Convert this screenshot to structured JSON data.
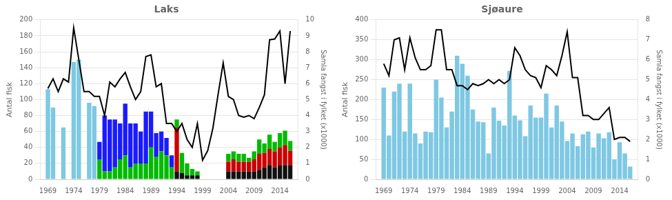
{
  "chart_data": [
    {
      "type": "bar",
      "title": "Laks",
      "ylabel": "Antal fisk",
      "y2label": "Samla fangst i fylket (x1000)",
      "stacked": true,
      "grid": true,
      "x": [
        1969,
        1970,
        1971,
        1972,
        1973,
        1974,
        1975,
        1976,
        1977,
        1978,
        1979,
        1980,
        1981,
        1982,
        1983,
        1984,
        1985,
        1986,
        1987,
        1988,
        1989,
        1990,
        1991,
        1992,
        1993,
        1994,
        1995,
        1996,
        1997,
        1998,
        1999,
        2000,
        2001,
        2002,
        2003,
        2004,
        2005,
        2006,
        2007,
        2008,
        2009,
        2010,
        2011,
        2012,
        2013,
        2014,
        2015,
        2016
      ],
      "xlim": [
        1967.5,
        2017.5
      ],
      "xticks": [
        1969,
        1974,
        1979,
        1984,
        1989,
        1994,
        1999,
        2004,
        2009,
        2014
      ],
      "ylim": [
        0,
        200
      ],
      "yticks": [
        0,
        20,
        40,
        60,
        80,
        100,
        120,
        140,
        160,
        180,
        200
      ],
      "y2lim": [
        0,
        10
      ],
      "y2ticks": [
        0,
        1,
        2,
        3,
        4,
        5,
        6,
        7,
        8,
        9,
        10
      ],
      "series": [
        {
          "color": "#7ec8e3",
          "values": [
            113,
            90,
            0,
            65,
            0,
            147,
            150,
            0,
            96,
            92,
            0,
            0,
            0,
            0,
            0,
            0,
            0,
            0,
            0,
            0,
            0,
            0,
            0,
            0,
            0,
            0,
            0,
            0,
            0,
            0,
            0,
            0,
            0,
            0,
            0,
            0,
            0,
            0,
            0,
            0,
            0,
            0,
            0,
            0,
            0,
            0,
            0,
            0
          ]
        },
        {
          "color": "#111111",
          "values": [
            0,
            0,
            0,
            0,
            0,
            0,
            0,
            0,
            0,
            0,
            0,
            0,
            0,
            0,
            0,
            0,
            0,
            0,
            0,
            0,
            0,
            0,
            0,
            0,
            0,
            10,
            8,
            5,
            5,
            5,
            0,
            0,
            0,
            0,
            0,
            10,
            10,
            10,
            10,
            10,
            10,
            12,
            15,
            18,
            15,
            18,
            18,
            18
          ]
        },
        {
          "color": "#cc0000",
          "values": [
            0,
            0,
            0,
            0,
            0,
            0,
            0,
            0,
            0,
            0,
            0,
            0,
            0,
            0,
            0,
            0,
            0,
            0,
            0,
            0,
            0,
            0,
            0,
            0,
            0,
            55,
            0,
            0,
            0,
            0,
            0,
            0,
            0,
            0,
            0,
            12,
            15,
            12,
            12,
            12,
            15,
            20,
            18,
            20,
            20,
            22,
            25,
            18
          ]
        },
        {
          "color": "#00bb00",
          "values": [
            0,
            0,
            0,
            0,
            0,
            0,
            0,
            0,
            0,
            0,
            25,
            10,
            10,
            15,
            25,
            30,
            15,
            20,
            20,
            20,
            40,
            28,
            35,
            30,
            15,
            10,
            25,
            15,
            8,
            5,
            0,
            0,
            0,
            0,
            0,
            10,
            10,
            10,
            10,
            5,
            10,
            18,
            12,
            18,
            12,
            18,
            18,
            12
          ]
        },
        {
          "color": "#1a1aff",
          "values": [
            0,
            0,
            0,
            0,
            0,
            0,
            0,
            0,
            0,
            0,
            22,
            70,
            65,
            60,
            45,
            65,
            55,
            50,
            40,
            65,
            45,
            30,
            25,
            22,
            15,
            0,
            0,
            0,
            0,
            0,
            0,
            0,
            0,
            0,
            0,
            0,
            0,
            0,
            0,
            0,
            0,
            0,
            0,
            0,
            0,
            0,
            0,
            0
          ]
        },
        {
          "type": "line",
          "axis": "y2",
          "color": "#000000",
          "values": [
            5.7,
            6.3,
            5.5,
            6.3,
            6.1,
            9.5,
            7.5,
            5.5,
            5.5,
            5.2,
            5.2,
            4.0,
            6.1,
            5.8,
            6.3,
            6.7,
            5.8,
            5.0,
            5.5,
            7.7,
            7.8,
            5.8,
            6.0,
            3.5,
            3.5,
            3.0,
            3.5,
            2.5,
            2.0,
            3.5,
            1.2,
            1.8,
            3.2,
            5.3,
            7.3,
            5.2,
            5.0,
            4.0,
            3.9,
            4.0,
            3.8,
            4.5,
            5.3,
            8.75,
            8.8,
            9.3,
            6.0,
            9.3
          ]
        }
      ]
    },
    {
      "type": "bar",
      "title": "Sjøaure",
      "ylabel": "Antal fisk",
      "y2label": "Samla fangst i fylket (x1000)",
      "grid": true,
      "x": [
        1969,
        1970,
        1971,
        1972,
        1973,
        1974,
        1975,
        1976,
        1977,
        1978,
        1979,
        1980,
        1981,
        1982,
        1983,
        1984,
        1985,
        1986,
        1987,
        1988,
        1989,
        1990,
        1991,
        1992,
        1993,
        1994,
        1995,
        1996,
        1997,
        1998,
        1999,
        2000,
        2001,
        2002,
        2003,
        2004,
        2005,
        2006,
        2007,
        2008,
        2009,
        2010,
        2011,
        2012,
        2013,
        2014,
        2015,
        2016
      ],
      "xlim": [
        1967.5,
        2017.5
      ],
      "xticks": [
        1969,
        1974,
        1979,
        1984,
        1989,
        1994,
        1999,
        2004,
        2009,
        2014
      ],
      "ylim": [
        0,
        400
      ],
      "yticks": [
        0,
        50,
        100,
        150,
        200,
        250,
        300,
        350,
        400
      ],
      "y2lim": [
        0,
        8
      ],
      "y2ticks": [
        0,
        1,
        2,
        3,
        4,
        5,
        6,
        7,
        8
      ],
      "series": [
        {
          "color": "#7ec8e3",
          "values": [
            230,
            110,
            220,
            240,
            120,
            240,
            115,
            90,
            120,
            118,
            250,
            205,
            130,
            170,
            310,
            290,
            260,
            175,
            145,
            143,
            65,
            180,
            147,
            135,
            272,
            160,
            148,
            108,
            185,
            155,
            155,
            215,
            130,
            185,
            145,
            96,
            115,
            83,
            113,
            120,
            80,
            115,
            103,
            118,
            50,
            93,
            65,
            32
          ]
        },
        {
          "type": "line",
          "axis": "y2",
          "color": "#000000",
          "values": [
            5.8,
            5.2,
            7.0,
            7.1,
            5.5,
            7.1,
            6.1,
            5.5,
            5.5,
            5.7,
            7.5,
            7.5,
            5.5,
            5.5,
            4.7,
            4.7,
            4.5,
            4.8,
            4.7,
            4.8,
            5.0,
            4.8,
            5.0,
            4.8,
            5.0,
            6.6,
            6.2,
            5.5,
            5.2,
            5.1,
            4.6,
            5.7,
            5.5,
            5.2,
            6.2,
            7.4,
            5.1,
            5.1,
            3.2,
            3.2,
            3.0,
            3.0,
            3.3,
            3.6,
            2.0,
            2.1,
            2.1,
            1.9
          ]
        }
      ]
    }
  ]
}
